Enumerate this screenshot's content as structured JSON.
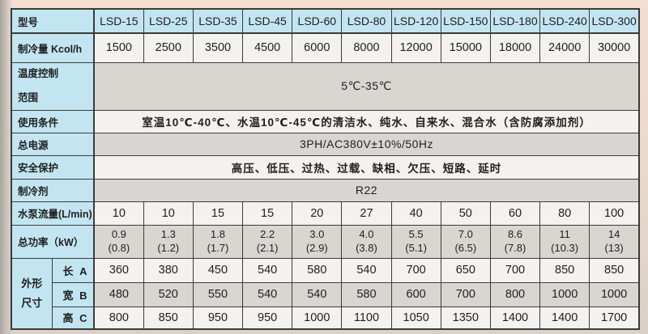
{
  "colors": {
    "header_cell_blue": "#c3e5f2",
    "row_light": "#f4f2ee",
    "row_dark": "#d9d6d1",
    "border": "#3b3b39",
    "text": "#1f1f1f",
    "page_top_pink": "#f3ded0",
    "page_left_gray": "#a9a49d"
  },
  "table": {
    "header": {
      "label": "型号",
      "models": [
        "LSD-15",
        "LSD-25",
        "LSD-35",
        "LSD-45",
        "LSD-60",
        "LSD-80",
        "LSD-120",
        "LSD-150",
        "LSD-180",
        "LSD-240",
        "LSD-300"
      ]
    },
    "rows": [
      {
        "kind": "values",
        "label": "制冷量 Kcol/h",
        "cells": [
          "1500",
          "2500",
          "3500",
          "4500",
          "6000",
          "8000",
          "12000",
          "15000",
          "18000",
          "24000",
          "30000"
        ]
      },
      {
        "kind": "span",
        "label_lines": [
          "温度控制",
          "范围"
        ],
        "value": "5℃-35℃"
      },
      {
        "kind": "span",
        "label": "使用条件",
        "value": "室温10℃-40℃、水温10℃-45℃的清洁水、纯水、自来水、混合水（含防腐添加剂）"
      },
      {
        "kind": "span",
        "label": "总电源",
        "value": "3PH/AC380V±10%/50Hz"
      },
      {
        "kind": "span",
        "label": "安全保护",
        "value": "高压、低压、过热、过载、缺相、欠压、短路、延时"
      },
      {
        "kind": "span",
        "label": "制冷剂",
        "value": "R22"
      },
      {
        "kind": "values",
        "label": "水泵流量(L/min)",
        "cells": [
          "10",
          "10",
          "15",
          "15",
          "20",
          "27",
          "40",
          "50",
          "60",
          "80",
          "100"
        ]
      },
      {
        "kind": "values2",
        "label": "总功率（kW）",
        "cells_top": [
          "0.9",
          "1.3",
          "1.8",
          "2.2",
          "3.0",
          "4.0",
          "5.5",
          "7.0",
          "8.6",
          "11",
          "14"
        ],
        "cells_bottom": [
          "(0.8)",
          "(1.2)",
          "(1.7)",
          "(2.1)",
          "(2.9)",
          "(3.8)",
          "(5.1)",
          "(6.5)",
          "(7.8)",
          "(10.3)",
          "(13)"
        ]
      },
      {
        "kind": "dim",
        "group_lines": [
          "外形",
          "尺寸"
        ],
        "label": "长 A",
        "cells": [
          "360",
          "380",
          "450",
          "540",
          "580",
          "540",
          "700",
          "650",
          "700",
          "850",
          "850"
        ]
      },
      {
        "kind": "dim",
        "label": "宽 B",
        "cells": [
          "480",
          "520",
          "550",
          "540",
          "540",
          "580",
          "600",
          "700",
          "800",
          "1000",
          "1000"
        ]
      },
      {
        "kind": "dim",
        "label": "高 C",
        "cells": [
          "800",
          "850",
          "950",
          "950",
          "1000",
          "1100",
          "1050",
          "1350",
          "1400",
          "1400",
          "1700"
        ]
      }
    ]
  }
}
